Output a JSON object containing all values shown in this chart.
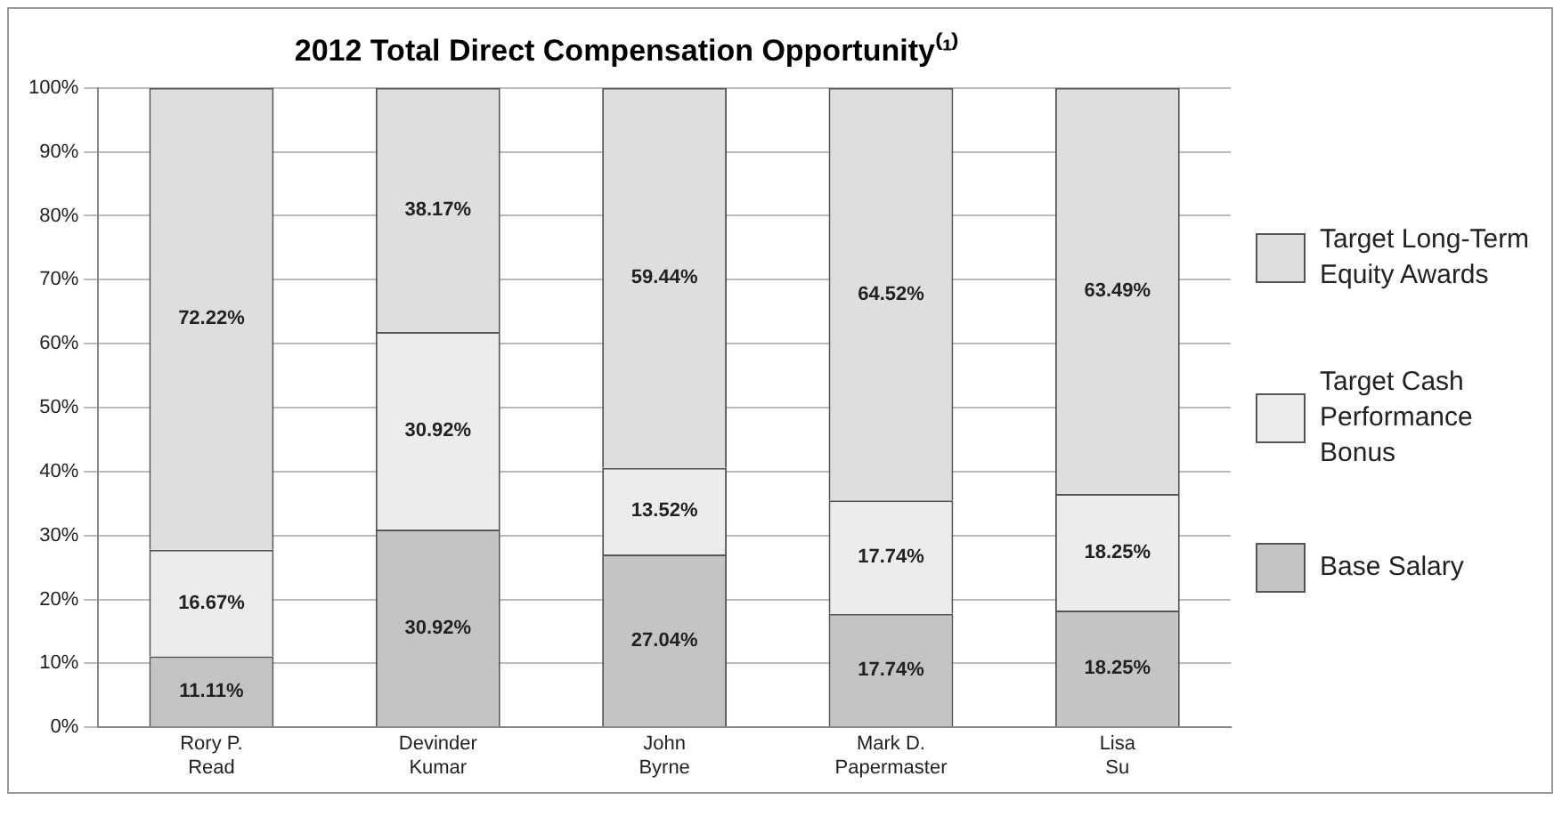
{
  "chart_data": {
    "type": "bar",
    "stacked": true,
    "title": "2012 Total Direct Compensation Opportunity⁽¹⁾",
    "categories": [
      "Rory P. Read",
      "Devinder Kumar",
      "John Byrne",
      "Mark D. Papermaster",
      "Lisa Su"
    ],
    "series": [
      {
        "name": "Base Salary",
        "color": "#c4c4c4",
        "values": [
          11.11,
          30.92,
          27.04,
          17.74,
          18.25
        ],
        "value_labels": [
          "11.11%",
          "30.92%",
          "27.04%",
          "17.74%",
          "18.25%"
        ]
      },
      {
        "name": "Target Cash Performance Bonus",
        "color": "#ececec",
        "values": [
          16.67,
          30.92,
          13.52,
          17.74,
          18.25
        ],
        "value_labels": [
          "16.67%",
          "30.92%",
          "13.52%",
          "17.74%",
          "18.25%"
        ]
      },
      {
        "name": "Target Long-Term Equity Awards",
        "color": "#dedede",
        "values": [
          72.22,
          38.17,
          59.44,
          64.52,
          63.49
        ],
        "value_labels": [
          "72.22%",
          "38.17%",
          "59.44%",
          "64.52%",
          "63.49%"
        ]
      }
    ],
    "ylim": [
      0,
      100
    ],
    "yticks": [
      {
        "value": 0,
        "label": "0%"
      },
      {
        "value": 10,
        "label": "10%"
      },
      {
        "value": 20,
        "label": "20%"
      },
      {
        "value": 30,
        "label": "30%"
      },
      {
        "value": 40,
        "label": "40%"
      },
      {
        "value": 50,
        "label": "50%"
      },
      {
        "value": 60,
        "label": "60%"
      },
      {
        "value": 70,
        "label": "70%"
      },
      {
        "value": 80,
        "label": "80%"
      },
      {
        "value": 90,
        "label": "90%"
      },
      {
        "value": 100,
        "label": "100%"
      }
    ],
    "grid": "y",
    "legend": "right"
  }
}
